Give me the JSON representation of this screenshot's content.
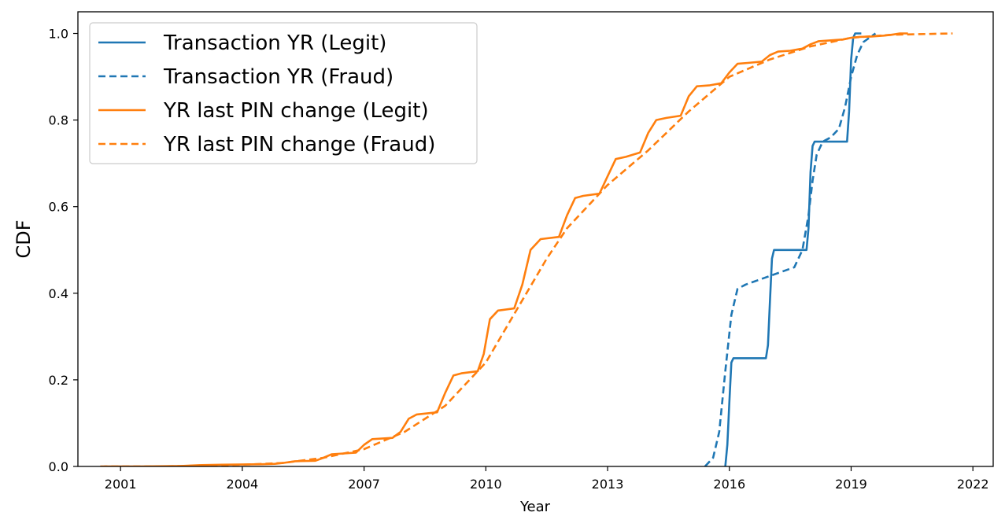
{
  "chart_data": {
    "type": "line",
    "title": "",
    "xlabel": "Year",
    "ylabel": "CDF",
    "xlim": [
      1999.95,
      2022.5
    ],
    "ylim": [
      0,
      1.05
    ],
    "x_ticks": [
      "2001",
      "2004",
      "2007",
      "2010",
      "2013",
      "2016",
      "2019",
      "2022"
    ],
    "y_ticks": [
      "0.0",
      "0.2",
      "0.4",
      "0.6",
      "0.8",
      "1.0"
    ],
    "grid": false,
    "legend": {
      "placement": "top-left"
    },
    "colors": {
      "blue": "#1f77b4",
      "orange": "#ff7f0e"
    },
    "series": [
      {
        "name": "Transaction YR (Legit)",
        "color": "#1f77b4",
        "style": "solid",
        "x": [
          2015.9,
          2015.95,
          2016.0,
          2016.05,
          2016.1,
          2016.9,
          2016.95,
          2017.0,
          2017.05,
          2017.1,
          2017.9,
          2017.95,
          2018.0,
          2018.05,
          2018.1,
          2018.9,
          2018.95,
          2019.0,
          2019.05,
          2019.1,
          2019.25
        ],
        "y": [
          0.0,
          0.05,
          0.15,
          0.24,
          0.25,
          0.25,
          0.28,
          0.38,
          0.48,
          0.5,
          0.5,
          0.55,
          0.68,
          0.74,
          0.75,
          0.75,
          0.82,
          0.94,
          0.99,
          1.0,
          1.0
        ]
      },
      {
        "name": "Transaction YR (Fraud)",
        "color": "#1f77b4",
        "style": "dashed",
        "x": [
          2015.4,
          2015.6,
          2015.75,
          2015.9,
          2016.05,
          2016.2,
          2016.4,
          2016.7,
          2017.0,
          2017.3,
          2017.6,
          2017.8,
          2017.95,
          2018.05,
          2018.15,
          2018.3,
          2018.5,
          2018.7,
          2018.85,
          2019.0,
          2019.15,
          2019.3,
          2019.45,
          2019.6
        ],
        "y": [
          0.0,
          0.02,
          0.08,
          0.22,
          0.35,
          0.41,
          0.42,
          0.43,
          0.44,
          0.45,
          0.46,
          0.5,
          0.58,
          0.66,
          0.72,
          0.75,
          0.76,
          0.78,
          0.83,
          0.9,
          0.95,
          0.98,
          0.99,
          1.0
        ]
      },
      {
        "name": "YR last PIN change (Legit)",
        "color": "#ff7f0e",
        "style": "solid",
        "x": [
          2000.6,
          2001.5,
          2002.5,
          2003.0,
          2003.5,
          2004.5,
          2004.8,
          2005.0,
          2005.3,
          2005.8,
          2006.0,
          2006.2,
          2006.5,
          2006.8,
          2007.0,
          2007.2,
          2007.7,
          2007.9,
          2008.1,
          2008.3,
          2008.8,
          2009.0,
          2009.2,
          2009.4,
          2009.8,
          2009.95,
          2010.1,
          2010.3,
          2010.7,
          2010.9,
          2011.1,
          2011.35,
          2011.8,
          2012.0,
          2012.2,
          2012.4,
          2012.8,
          2013.0,
          2013.2,
          2013.45,
          2013.8,
          2014.0,
          2014.2,
          2014.45,
          2014.8,
          2015.0,
          2015.2,
          2015.5,
          2015.8,
          2016.0,
          2016.2,
          2016.45,
          2016.8,
          2017.0,
          2017.2,
          2017.5,
          2017.8,
          2018.0,
          2018.2,
          2018.5,
          2018.8,
          2019.0,
          2019.2,
          2019.5,
          2019.8,
          2020.0,
          2020.2,
          2020.4
        ],
        "y": [
          0.0,
          0.0,
          0.001,
          0.003,
          0.004,
          0.005,
          0.006,
          0.008,
          0.012,
          0.013,
          0.02,
          0.028,
          0.03,
          0.032,
          0.05,
          0.063,
          0.066,
          0.08,
          0.11,
          0.12,
          0.125,
          0.17,
          0.21,
          0.215,
          0.22,
          0.26,
          0.34,
          0.36,
          0.365,
          0.42,
          0.5,
          0.525,
          0.53,
          0.58,
          0.62,
          0.625,
          0.63,
          0.67,
          0.71,
          0.715,
          0.725,
          0.77,
          0.8,
          0.805,
          0.81,
          0.855,
          0.878,
          0.88,
          0.885,
          0.91,
          0.93,
          0.932,
          0.935,
          0.95,
          0.958,
          0.96,
          0.965,
          0.975,
          0.982,
          0.984,
          0.986,
          0.99,
          0.992,
          0.993,
          0.995,
          0.997,
          1.0,
          1.0
        ]
      },
      {
        "name": "YR last PIN change (Fraud)",
        "color": "#ff7f0e",
        "style": "dashed",
        "x": [
          2000.5,
          2002.0,
          2003.0,
          2004.0,
          2005.0,
          2006.0,
          2007.0,
          2008.0,
          2009.0,
          2010.0,
          2010.5,
          2011.0,
          2011.5,
          2012.0,
          2012.5,
          2013.0,
          2014.0,
          2015.0,
          2016.0,
          2017.0,
          2018.0,
          2019.0,
          2020.0,
          2021.5
        ],
        "y": [
          0.0,
          0.0,
          0.002,
          0.004,
          0.008,
          0.02,
          0.04,
          0.08,
          0.14,
          0.24,
          0.32,
          0.4,
          0.48,
          0.55,
          0.6,
          0.65,
          0.73,
          0.82,
          0.9,
          0.94,
          0.97,
          0.99,
          0.997,
          1.0
        ]
      }
    ]
  }
}
